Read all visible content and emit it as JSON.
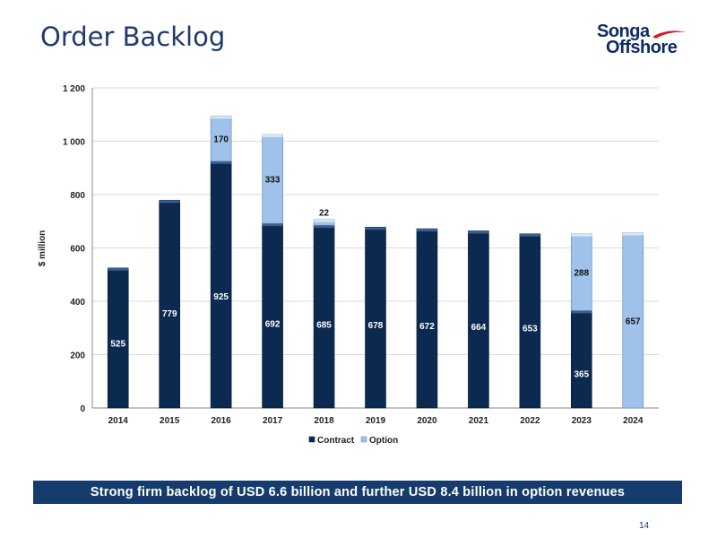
{
  "header": {
    "title": "Order Backlog"
  },
  "logo": {
    "line1": "Songa",
    "line2": "Offshore",
    "alt": "Songa Offshore"
  },
  "banner": {
    "text": "Strong firm backlog of USD 6.6 billion and further USD 8.4 billion in option revenues"
  },
  "footer": {
    "page_number": "14"
  },
  "colors": {
    "contract": "#0c2a4f",
    "option": "#9ec2ea",
    "title": "#1f3a6b",
    "banner": "#163c6d",
    "logo_accent": "#d0202c"
  },
  "chart_data": {
    "type": "bar",
    "stacked": true,
    "categories": [
      "2014",
      "2015",
      "2016",
      "2017",
      "2018",
      "2019",
      "2020",
      "2021",
      "2022",
      "2023",
      "2024"
    ],
    "series": [
      {
        "name": "Contract",
        "values": [
          525,
          779,
          925,
          692,
          685,
          678,
          672,
          664,
          653,
          365,
          0
        ]
      },
      {
        "name": "Option",
        "values": [
          0,
          0,
          170,
          333,
          22,
          0,
          0,
          0,
          0,
          288,
          657
        ]
      }
    ],
    "ylabel": "$ million",
    "ylim": [
      0,
      1200
    ],
    "yticks": [
      0,
      200,
      400,
      600,
      800,
      1000,
      1200
    ],
    "ytick_labels": [
      "0",
      "200",
      "400",
      "600",
      "800",
      "1 000",
      "1 200"
    ],
    "grid": true,
    "legend": "bottom"
  }
}
